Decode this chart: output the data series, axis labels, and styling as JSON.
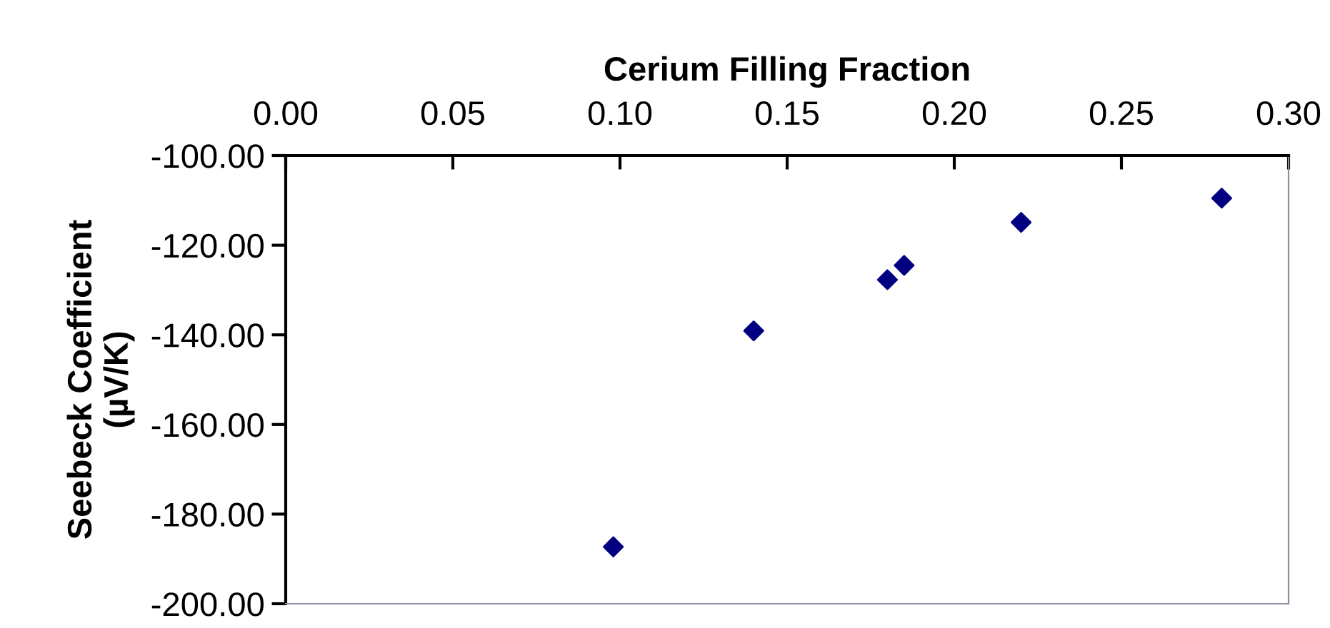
{
  "chart_data": {
    "type": "scatter",
    "xlabel": "Cerium Filling Fraction",
    "ylabel": "Seebeck Coefficient\n(µV/K)",
    "x": [
      0.098,
      0.14,
      0.18,
      0.185,
      0.22,
      0.28
    ],
    "series": [
      {
        "color": "#000080",
        "values": [
          -187.3,
          -139.1,
          -127.7,
          -124.5,
          -114.9,
          -109.5
        ]
      }
    ],
    "marker": "diamond",
    "grid": false,
    "legend": false,
    "xlim": [
      0,
      0.3
    ],
    "xticks": [
      {
        "value": 0,
        "label": "0.00"
      },
      {
        "value": 0.05,
        "label": "0.05"
      },
      {
        "value": 0.1,
        "label": "0.10"
      },
      {
        "value": 0.15,
        "label": "0.15"
      },
      {
        "value": 0.2,
        "label": "0.20"
      },
      {
        "value": 0.25,
        "label": "0.25"
      },
      {
        "value": 0.3,
        "label": "0.30"
      }
    ],
    "ylim": [
      -200,
      -100
    ],
    "yticks": [
      {
        "value": -200,
        "label": "-200.00"
      },
      {
        "value": -180,
        "label": "-180.00"
      },
      {
        "value": -160,
        "label": "-160.00"
      },
      {
        "value": -140,
        "label": "-140.00"
      },
      {
        "value": -120,
        "label": "-120.00"
      },
      {
        "value": -100,
        "label": "-100.00"
      }
    ]
  }
}
